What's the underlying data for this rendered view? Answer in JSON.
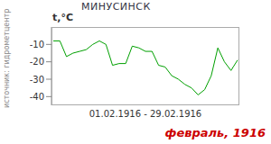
{
  "chart_data": {
    "type": "line",
    "title": "МИНУСИНСК",
    "y_label": "t,°C",
    "x_label": "01.02.1916 - 29.02.1916",
    "source": "источник: гидрометцентр",
    "caption": "февраль, 1916",
    "categories": [
      null,
      null,
      null,
      null,
      null,
      null,
      null,
      null,
      null,
      null,
      null,
      null,
      null,
      null,
      null,
      null,
      null,
      null,
      null,
      null,
      null,
      null,
      null,
      null,
      null,
      null,
      null,
      null,
      null
    ],
    "values": [
      -8,
      -8,
      -17,
      -15,
      -14,
      -13,
      -10,
      -8,
      -10,
      -22,
      -21,
      -21,
      -11,
      -12,
      -14,
      -14,
      -22,
      -23,
      -28,
      -30,
      -33,
      -35,
      -39,
      -36,
      -28,
      -12,
      -20,
      -25,
      -19
    ],
    "color": "#00a000",
    "ylim": [
      -45,
      0
    ],
    "yticks": [
      -10,
      -20,
      -30,
      -40
    ],
    "grid": false,
    "tick_labels": "y"
  }
}
